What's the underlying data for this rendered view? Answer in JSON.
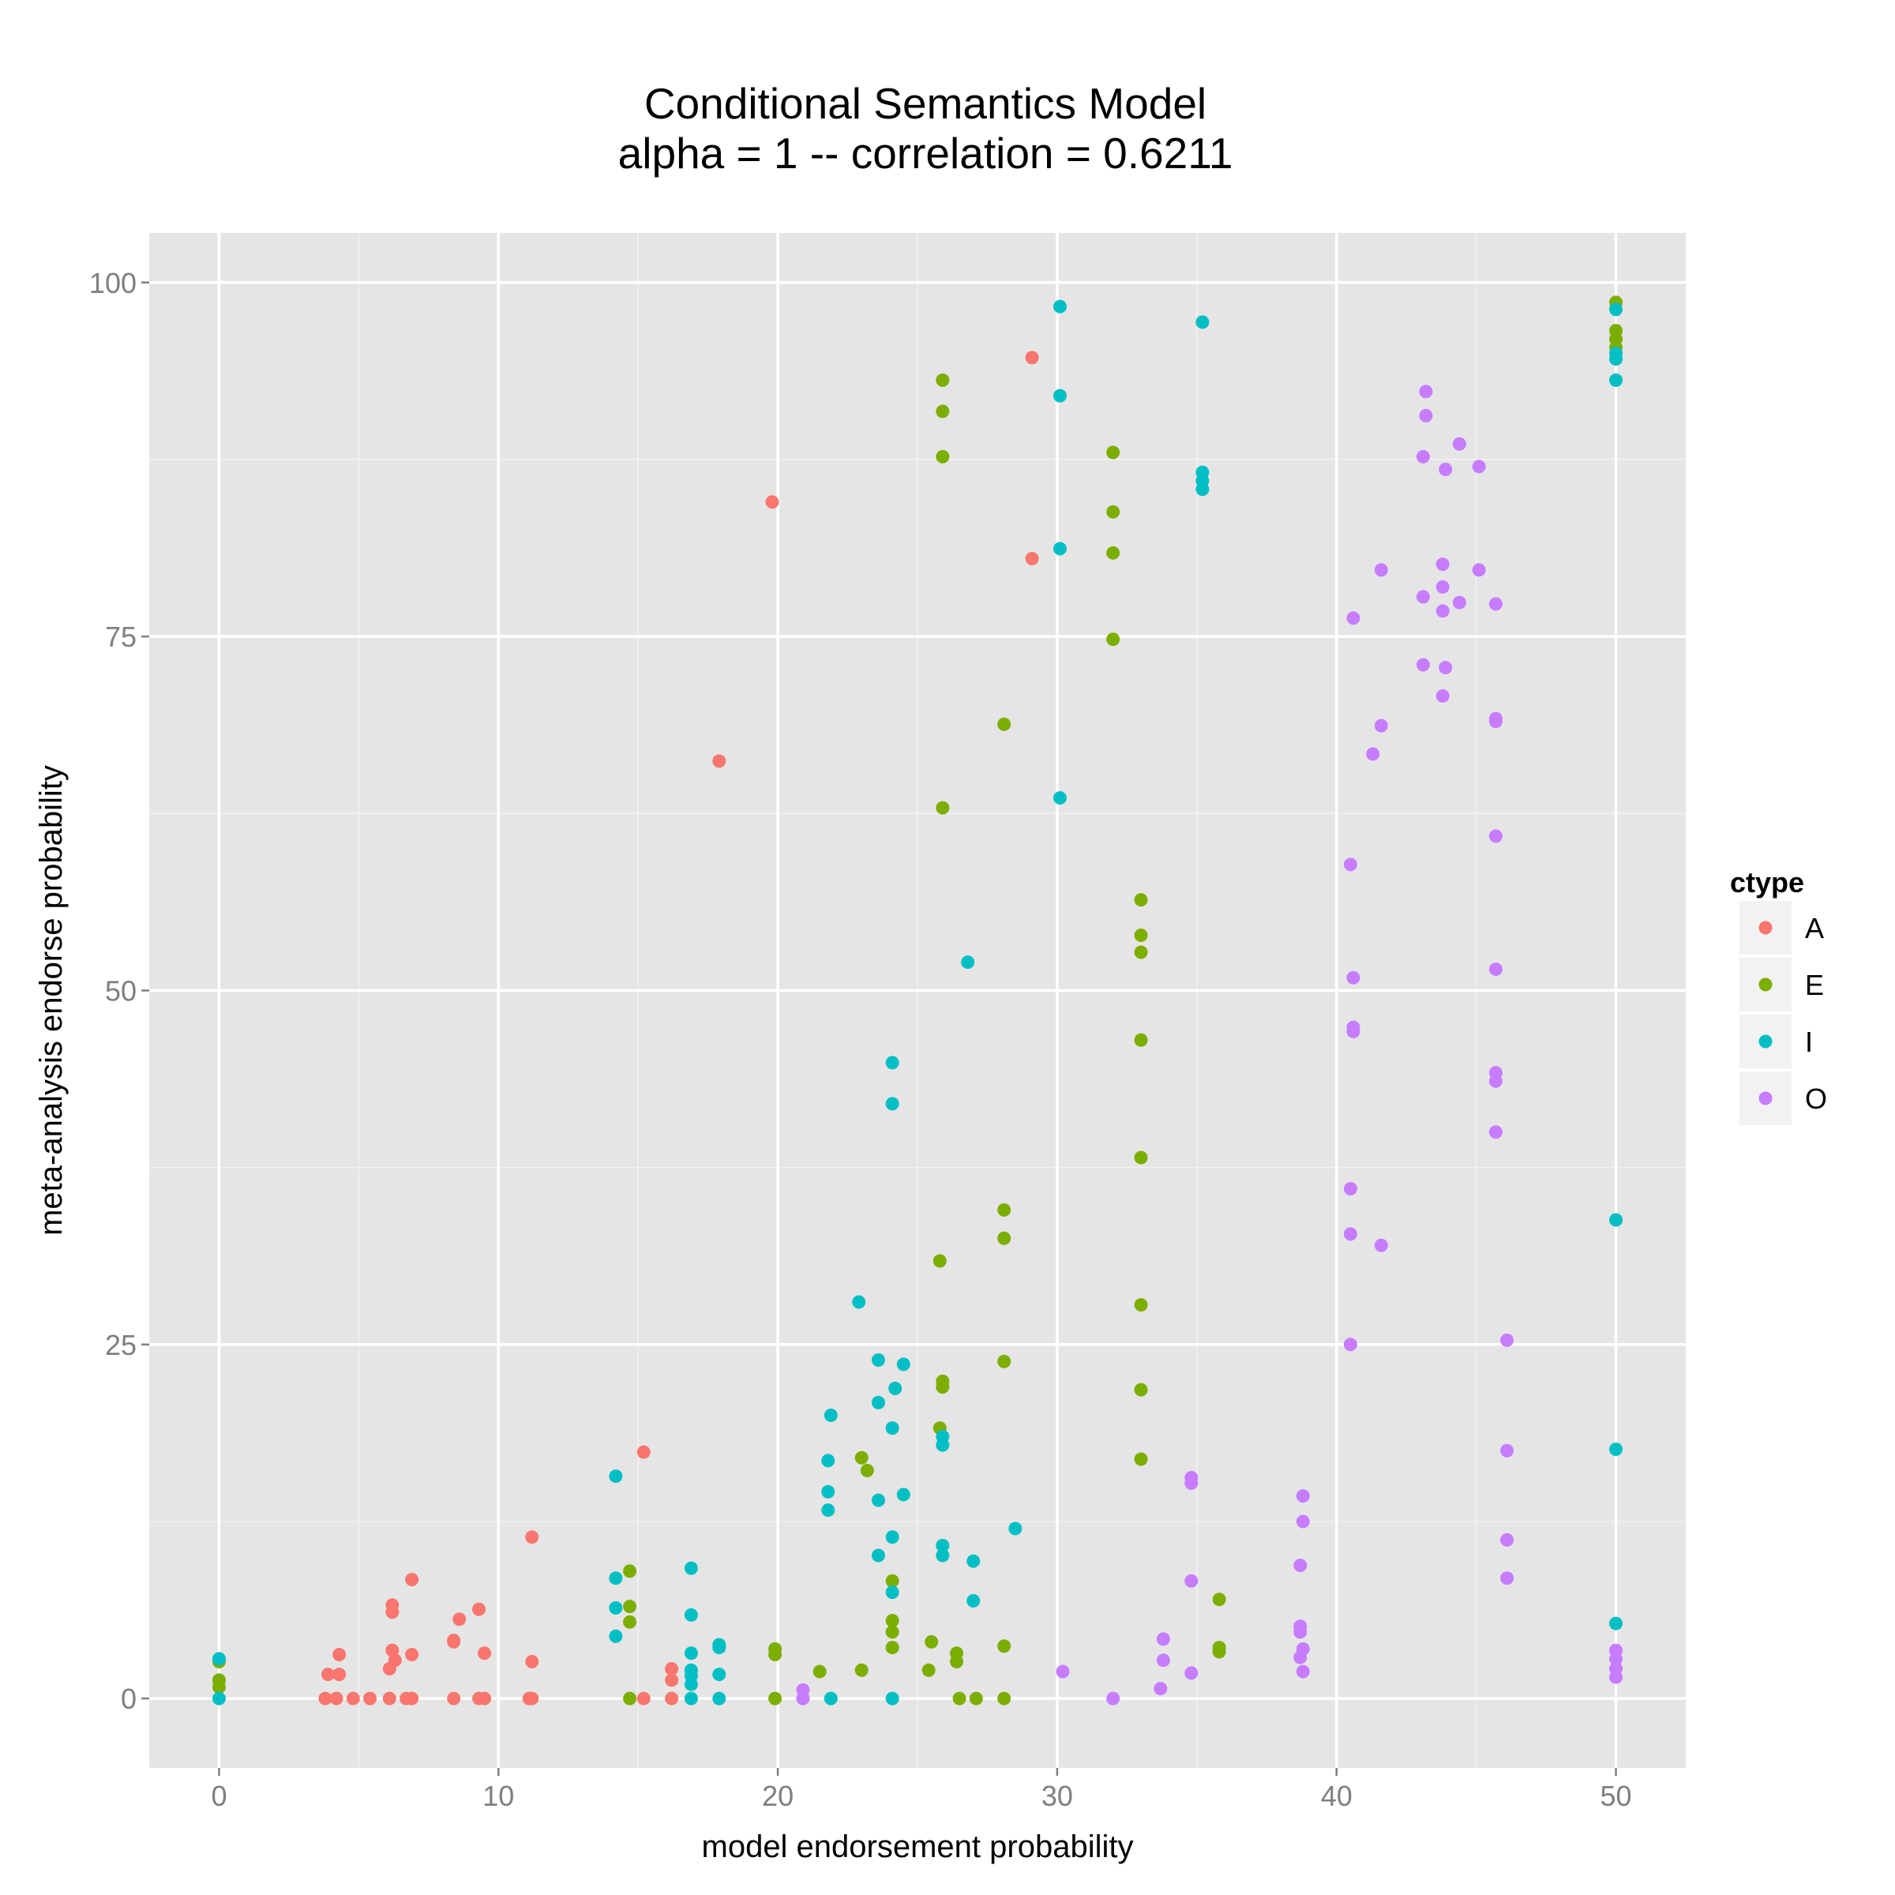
{
  "chart_data": {
    "type": "scatter",
    "title": "Conditional Semantics Model",
    "subtitle": "alpha = 1 -- correlation = 0.6211",
    "xlabel": "model endorsement probability",
    "ylabel": "meta-analysis endorse probability",
    "xlim": [
      -2.5,
      52.5
    ],
    "ylim": [
      -4.9,
      103.5
    ],
    "x_ticks": [
      0,
      10,
      20,
      30,
      40,
      50
    ],
    "y_ticks": [
      0,
      25,
      50,
      75,
      100
    ],
    "x_tick_labels": [
      "0",
      "10",
      "20",
      "30",
      "40",
      "50"
    ],
    "y_tick_labels": [
      "0",
      "25",
      "50",
      "75",
      "100"
    ],
    "grid": true,
    "panel_background": "#e5e5e5",
    "legend": {
      "title": "ctype",
      "position": "right"
    },
    "series": [
      {
        "name": "A",
        "color": "#f8766d",
        "points": [
          [
            3.8,
            0
          ],
          [
            4.2,
            0
          ],
          [
            4.8,
            0
          ],
          [
            5.4,
            0
          ],
          [
            6.1,
            0
          ],
          [
            6.7,
            0
          ],
          [
            6.9,
            0
          ],
          [
            8.4,
            0
          ],
          [
            9.3,
            0
          ],
          [
            9.5,
            0
          ],
          [
            11.1,
            0
          ],
          [
            11.2,
            0
          ],
          [
            15.2,
            0
          ],
          [
            16.2,
            0
          ],
          [
            3.9,
            1.7
          ],
          [
            4.3,
            1.7
          ],
          [
            6.1,
            2.1
          ],
          [
            6.2,
            3.4
          ],
          [
            6.3,
            2.7
          ],
          [
            4.3,
            3.1
          ],
          [
            6.9,
            3.1
          ],
          [
            8.4,
            4.1
          ],
          [
            8.4,
            4.0
          ],
          [
            9.5,
            3.2
          ],
          [
            11.2,
            2.6
          ],
          [
            16.2,
            1.3
          ],
          [
            16.2,
            2.1
          ],
          [
            6.2,
            6.1
          ],
          [
            6.2,
            6.6
          ],
          [
            6.9,
            8.4
          ],
          [
            8.6,
            5.6
          ],
          [
            9.3,
            6.3
          ],
          [
            11.2,
            11.4
          ],
          [
            15.2,
            17.4
          ],
          [
            17.9,
            66.2
          ],
          [
            19.8,
            84.5
          ],
          [
            29.1,
            80.5
          ],
          [
            29.1,
            94.7
          ]
        ]
      },
      {
        "name": "E",
        "color": "#7cae00",
        "points": [
          [
            0,
            1.3
          ],
          [
            0,
            2.6
          ],
          [
            0,
            0.8
          ],
          [
            14.7,
            0
          ],
          [
            19.9,
            0
          ],
          [
            26.5,
            0
          ],
          [
            27.1,
            0
          ],
          [
            28.1,
            0
          ],
          [
            19.9,
            3.5
          ],
          [
            19.9,
            3.1
          ],
          [
            21.5,
            1.9
          ],
          [
            23.0,
            2.0
          ],
          [
            25.4,
            2.0
          ],
          [
            25.5,
            4.0
          ],
          [
            26.4,
            2.6
          ],
          [
            26.4,
            3.2
          ],
          [
            28.1,
            3.7
          ],
          [
            35.8,
            3.3
          ],
          [
            35.8,
            3.6
          ],
          [
            35.8,
            7.0
          ],
          [
            14.7,
            5.4
          ],
          [
            14.7,
            6.5
          ],
          [
            14.7,
            9.0
          ],
          [
            24.1,
            3.6
          ],
          [
            24.1,
            4.7
          ],
          [
            24.1,
            5.5
          ],
          [
            24.1,
            8.3
          ],
          [
            23.0,
            17.0
          ],
          [
            23.2,
            16.1
          ],
          [
            25.8,
            19.1
          ],
          [
            25.9,
            22.0
          ],
          [
            25.9,
            22.4
          ],
          [
            28.1,
            23.8
          ],
          [
            28.1,
            32.5
          ],
          [
            28.1,
            34.5
          ],
          [
            25.8,
            30.9
          ],
          [
            33.0,
            16.9
          ],
          [
            33.0,
            21.8
          ],
          [
            33.0,
            27.8
          ],
          [
            33.0,
            38.2
          ],
          [
            33.0,
            46.5
          ],
          [
            33.0,
            52.7
          ],
          [
            33.0,
            53.9
          ],
          [
            33.0,
            56.4
          ],
          [
            28.1,
            68.8
          ],
          [
            25.9,
            62.9
          ],
          [
            32.0,
            74.8
          ],
          [
            32.0,
            80.9
          ],
          [
            32.0,
            83.8
          ],
          [
            32.0,
            88.0
          ],
          [
            25.9,
            87.7
          ],
          [
            25.9,
            90.9
          ],
          [
            25.9,
            93.1
          ],
          [
            50,
            95.4
          ],
          [
            50,
            96.0
          ],
          [
            50,
            96.6
          ],
          [
            50,
            98.6
          ]
        ]
      },
      {
        "name": "I",
        "color": "#00bfc4",
        "points": [
          [
            0,
            2.8
          ],
          [
            0,
            0
          ],
          [
            16.9,
            0
          ],
          [
            17.9,
            0
          ],
          [
            21.9,
            0
          ],
          [
            24.1,
            0
          ],
          [
            16.9,
            1.0
          ],
          [
            16.9,
            1.6
          ],
          [
            16.9,
            2.0
          ],
          [
            17.9,
            1.7
          ],
          [
            16.9,
            3.2
          ],
          [
            17.9,
            3.6
          ],
          [
            17.9,
            3.8
          ],
          [
            14.2,
            4.4
          ],
          [
            14.2,
            6.4
          ],
          [
            14.2,
            8.5
          ],
          [
            16.9,
            5.9
          ],
          [
            16.9,
            9.2
          ],
          [
            14.2,
            15.7
          ],
          [
            21.8,
            13.3
          ],
          [
            21.8,
            14.6
          ],
          [
            21.8,
            16.8
          ],
          [
            21.9,
            20.0
          ],
          [
            22.9,
            28.0
          ],
          [
            23.6,
            10.1
          ],
          [
            23.6,
            14.0
          ],
          [
            23.6,
            20.9
          ],
          [
            23.6,
            23.9
          ],
          [
            24.1,
            7.5
          ],
          [
            24.1,
            11.4
          ],
          [
            24.1,
            19.1
          ],
          [
            24.2,
            21.9
          ],
          [
            24.5,
            14.4
          ],
          [
            24.5,
            23.6
          ],
          [
            25.9,
            10.1
          ],
          [
            25.9,
            10.8
          ],
          [
            25.9,
            17.9
          ],
          [
            25.9,
            18.5
          ],
          [
            27.0,
            9.7
          ],
          [
            27.0,
            6.9
          ],
          [
            28.5,
            12.0
          ],
          [
            26.8,
            52.0
          ],
          [
            24.1,
            42.0
          ],
          [
            24.1,
            44.9
          ],
          [
            30.1,
            63.6
          ],
          [
            30.1,
            81.2
          ],
          [
            30.1,
            92.0
          ],
          [
            30.1,
            98.3
          ],
          [
            35.2,
            85.4
          ],
          [
            35.2,
            86.0
          ],
          [
            35.2,
            86.6
          ],
          [
            35.2,
            97.2
          ],
          [
            50,
            5.3
          ],
          [
            50,
            17.6
          ],
          [
            50,
            33.8
          ],
          [
            50,
            93.1
          ],
          [
            50,
            94.6
          ],
          [
            50,
            95.0
          ],
          [
            50,
            98.1
          ]
        ]
      },
      {
        "name": "O",
        "color": "#c77cff",
        "points": [
          [
            20.9,
            0
          ],
          [
            32.0,
            0
          ],
          [
            20.9,
            0.6
          ],
          [
            30.2,
            1.9
          ],
          [
            33.7,
            0.7
          ],
          [
            33.8,
            2.7
          ],
          [
            33.8,
            4.2
          ],
          [
            34.8,
            1.8
          ],
          [
            34.8,
            8.3
          ],
          [
            34.8,
            15.2
          ],
          [
            34.8,
            15.6
          ],
          [
            38.8,
            1.9
          ],
          [
            38.7,
            2.9
          ],
          [
            38.8,
            3.5
          ],
          [
            38.7,
            4.7
          ],
          [
            38.7,
            5.1
          ],
          [
            38.7,
            9.4
          ],
          [
            38.8,
            12.5
          ],
          [
            38.8,
            14.3
          ],
          [
            50,
            1.5
          ],
          [
            50,
            2.1
          ],
          [
            50,
            2.8
          ],
          [
            50,
            3.4
          ],
          [
            40.5,
            25.0
          ],
          [
            40.5,
            32.8
          ],
          [
            40.5,
            36.0
          ],
          [
            40.6,
            47.1
          ],
          [
            40.6,
            47.4
          ],
          [
            40.6,
            50.9
          ],
          [
            40.5,
            58.9
          ],
          [
            40.6,
            76.3
          ],
          [
            41.3,
            66.7
          ],
          [
            41.6,
            68.7
          ],
          [
            41.6,
            79.7
          ],
          [
            41.6,
            32.0
          ],
          [
            43.1,
            73.0
          ],
          [
            43.1,
            77.8
          ],
          [
            43.1,
            87.7
          ],
          [
            43.2,
            90.6
          ],
          [
            43.2,
            92.3
          ],
          [
            43.8,
            70.8
          ],
          [
            43.9,
            72.8
          ],
          [
            43.8,
            76.8
          ],
          [
            43.8,
            78.5
          ],
          [
            43.8,
            80.1
          ],
          [
            43.9,
            86.8
          ],
          [
            44.4,
            77.4
          ],
          [
            44.4,
            88.6
          ],
          [
            45.1,
            79.7
          ],
          [
            45.1,
            87.0
          ],
          [
            45.7,
            77.3
          ],
          [
            45.7,
            69.0
          ],
          [
            45.7,
            69.2
          ],
          [
            45.7,
            60.9
          ],
          [
            45.7,
            51.5
          ],
          [
            45.7,
            44.2
          ],
          [
            45.7,
            43.6
          ],
          [
            45.7,
            40.0
          ],
          [
            46.1,
            25.3
          ],
          [
            46.1,
            17.5
          ],
          [
            46.1,
            11.2
          ],
          [
            46.1,
            8.5
          ]
        ]
      }
    ]
  }
}
